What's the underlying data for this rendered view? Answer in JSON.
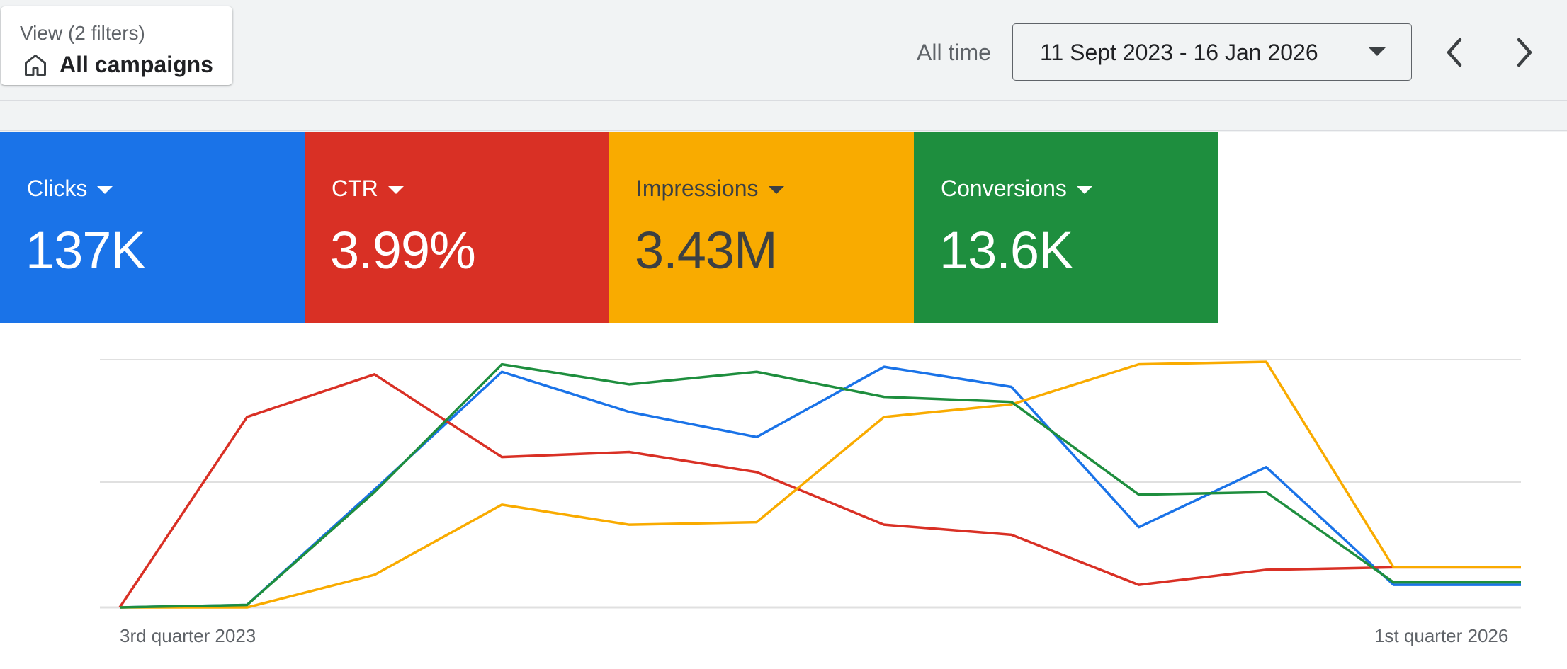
{
  "header": {
    "view_label": "View (2 filters)",
    "campaign_name": "All campaigns",
    "campaign_icon": "home-icon",
    "range_label": "All time",
    "date_range": "11 Sept 2023 - 16 Jan 2026",
    "prev_icon": "chevron-left-icon",
    "next_icon": "chevron-right-icon"
  },
  "metrics": [
    {
      "label": "Clicks",
      "value": "137K",
      "color": "#1a73e8"
    },
    {
      "label": "CTR",
      "value": "3.99%",
      "color": "#d93025"
    },
    {
      "label": "Impressions",
      "value": "3.43M",
      "color": "#f9ab00"
    },
    {
      "label": "Conversions",
      "value": "13.6K",
      "color": "#1e8e3e"
    }
  ],
  "chart_data": {
    "type": "line",
    "x_start_label": "3rd quarter 2023",
    "x_end_label": "1st quarter 2026",
    "grid": true,
    "ylim": [
      0,
      1
    ],
    "x": [
      0,
      1,
      2,
      3,
      4,
      5,
      6,
      7,
      8,
      9,
      10,
      11
    ],
    "series": [
      {
        "name": "Clicks",
        "color": "#1a73e8",
        "values": [
          0.0,
          0.01,
          0.47,
          0.94,
          0.78,
          0.68,
          0.96,
          0.88,
          0.32,
          0.56,
          0.09,
          0.09
        ]
      },
      {
        "name": "CTR",
        "color": "#d93025",
        "values": [
          0.0,
          0.76,
          0.93,
          0.6,
          0.62,
          0.54,
          0.33,
          0.29,
          0.09,
          0.15,
          0.16,
          0.16
        ]
      },
      {
        "name": "Impressions",
        "color": "#f9ab00",
        "values": [
          0.0,
          0.0,
          0.13,
          0.41,
          0.33,
          0.34,
          0.76,
          0.81,
          0.97,
          0.98,
          0.16,
          0.16
        ]
      },
      {
        "name": "Conversions",
        "color": "#1e8e3e",
        "values": [
          0.0,
          0.01,
          0.46,
          0.97,
          0.89,
          0.94,
          0.84,
          0.82,
          0.45,
          0.46,
          0.1,
          0.1
        ]
      }
    ]
  }
}
